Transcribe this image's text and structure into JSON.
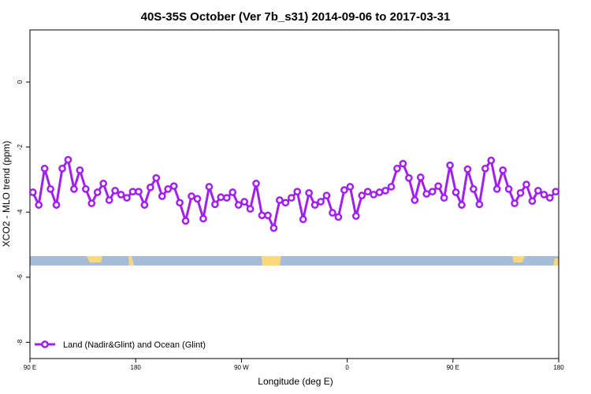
{
  "chart_data": {
    "type": "line",
    "title": "40S-35S October (Ver 7b_s31)   2014-09-06 to 2017-03-31",
    "x_label": "Longitude (deg E)",
    "y_label": "XCO2 - MLO trend (ppm)",
    "x": [
      92.5,
      97.5,
      102.5,
      107.5,
      112.5,
      117.5,
      122.5,
      127.5,
      132.5,
      137.5,
      142.5,
      147.5,
      152.5,
      157.5,
      162.5,
      167.5,
      172.5,
      177.5,
      182.5,
      187.5,
      192.5,
      197.5,
      202.5,
      207.5,
      212.5,
      217.5,
      222.5,
      227.5,
      232.5,
      237.5,
      242.5,
      247.5,
      252.5,
      257.5,
      262.5,
      267.5,
      272.5,
      277.5,
      282.5,
      287.5,
      292.5,
      297.5,
      302.5,
      307.5,
      312.5,
      317.5,
      322.5,
      327.5,
      332.5,
      337.5,
      342.5,
      347.5,
      352.5,
      357.5,
      362.5,
      367.5,
      372.5,
      377.5,
      382.5,
      387.5,
      392.5,
      397.5,
      402.5,
      407.5,
      412.5,
      417.5,
      422.5,
      427.5,
      432.5,
      437.5,
      442.5,
      447.5,
      452.5,
      457.5,
      462.5,
      467.5,
      472.5,
      477.5,
      482.5,
      487.5,
      492.5,
      497.5,
      502.5,
      507.5,
      512.5,
      517.5,
      522.5,
      527.5,
      532.5,
      537.5
    ],
    "series": [
      {
        "name": "Land (Nadir&Glint) and Ocean (Glint)",
        "color": "#a020f0",
        "values": [
          -3.39,
          -3.78,
          -2.66,
          -3.29,
          -3.78,
          -2.66,
          -2.39,
          -3.29,
          -2.71,
          -3.29,
          -3.73,
          -3.39,
          -3.12,
          -3.63,
          -3.34,
          -3.46,
          -3.56,
          -3.37,
          -3.37,
          -3.78,
          -3.24,
          -2.95,
          -3.51,
          -3.29,
          -3.2,
          -3.71,
          -4.27,
          -3.51,
          -3.59,
          -4.2,
          -3.22,
          -3.76,
          -3.54,
          -3.56,
          -3.39,
          -3.78,
          -3.68,
          -3.9,
          -3.12,
          -4.1,
          -4.1,
          -4.49,
          -3.63,
          -3.71,
          -3.56,
          -3.37,
          -4.22,
          -3.41,
          -3.78,
          -3.68,
          -3.49,
          -4.02,
          -4.15,
          -3.32,
          -3.22,
          -4.12,
          -3.49,
          -3.37,
          -3.46,
          -3.39,
          -3.34,
          -3.22,
          -2.66,
          -2.51,
          -2.95,
          -3.63,
          -2.93,
          -3.44,
          -3.37,
          -3.2,
          -3.56,
          -2.56,
          -3.39,
          -3.78,
          -2.68,
          -3.29,
          -3.76,
          -2.66,
          -2.41,
          -3.29,
          -2.71,
          -3.29,
          -3.73,
          -3.41,
          -3.15,
          -3.66,
          -3.34,
          -3.46,
          -3.56,
          -3.37
        ]
      }
    ],
    "xlim": [
      90,
      540
    ],
    "xticks": [
      {
        "value": 90,
        "label": "90 E"
      },
      180,
      {
        "value": 270,
        "label": "90 W"
      },
      {
        "value": 360,
        "label": "0"
      },
      {
        "value": 450,
        "label": "90 E"
      },
      {
        "value": 540,
        "label": "180"
      }
    ],
    "ylim": [
      -8.5,
      1.6
    ],
    "yticks": [
      0,
      -2,
      -4,
      -6,
      -8
    ],
    "legend": "bottom-left"
  }
}
